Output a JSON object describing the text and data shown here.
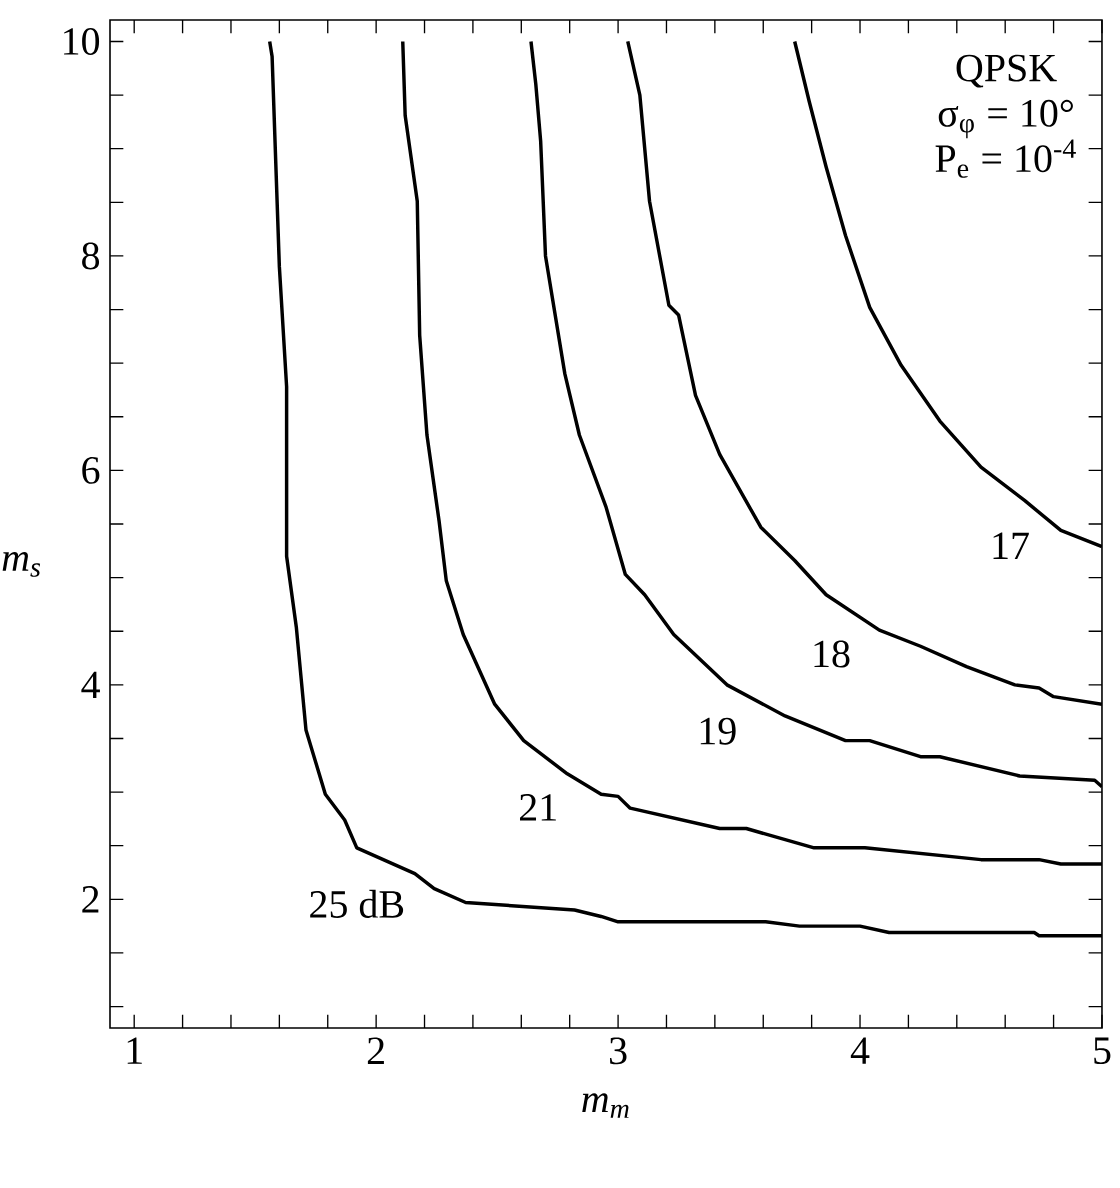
{
  "chart_data": {
    "type": "line",
    "xlabel": "m$_{m}$",
    "ylabel": "m$_{s}$",
    "xlim": [
      0.9,
      5
    ],
    "ylim": [
      0.8,
      10.2
    ],
    "xticks": [
      1,
      {
        "value": 1.2,
        "label": null
      },
      {
        "value": 1.4,
        "label": null
      },
      {
        "value": 1.6,
        "label": null
      },
      {
        "value": 1.8,
        "label": null
      },
      2,
      {
        "value": 2.2,
        "label": null
      },
      {
        "value": 2.4,
        "label": null
      },
      {
        "value": 2.6,
        "label": null
      },
      {
        "value": 2.8,
        "label": null
      },
      3,
      {
        "value": 3.2,
        "label": null
      },
      {
        "value": 3.4,
        "label": null
      },
      {
        "value": 3.6,
        "label": null
      },
      {
        "value": 3.8,
        "label": null
      },
      4,
      {
        "value": 4.2,
        "label": null
      },
      {
        "value": 4.4,
        "label": null
      },
      {
        "value": 4.6,
        "label": null
      },
      {
        "value": 4.8,
        "label": null
      },
      5
    ],
    "yticks": [
      {
        "value": 1,
        "label": null
      },
      {
        "value": 1.5,
        "label": null
      },
      2,
      {
        "value": 2.5,
        "label": null
      },
      {
        "value": 3,
        "label": null
      },
      {
        "value": 3.5,
        "label": null
      },
      4,
      {
        "value": 4.5,
        "label": null
      },
      {
        "value": 5,
        "label": null
      },
      {
        "value": 5.5,
        "label": null
      },
      6,
      {
        "value": 6.5,
        "label": null
      },
      {
        "value": 7,
        "label": null
      },
      {
        "value": 7.5,
        "label": null
      },
      8,
      {
        "value": 8.5,
        "label": null
      },
      {
        "value": 9,
        "label": null
      },
      {
        "value": 9.5,
        "label": null
      },
      10
    ],
    "marker": "none",
    "line_style": "solid",
    "series": [
      {
        "color": "#000000",
        "x": [
          1.56,
          1.57,
          1.6,
          1.63,
          1.63,
          1.67,
          1.71,
          1.79,
          1.87,
          1.92,
          2.16,
          2.24,
          2.37,
          2.82,
          2.93,
          3.0,
          3.61,
          3.75,
          4.0,
          4.12,
          4.72,
          4.74,
          5.0
        ],
        "values": [
          10,
          9.86,
          7.9,
          6.78,
          5.2,
          4.54,
          3.58,
          2.98,
          2.74,
          2.48,
          2.24,
          2.1,
          1.97,
          1.9,
          1.84,
          1.79,
          1.79,
          1.75,
          1.75,
          1.69,
          1.69,
          1.66,
          1.66
        ]
      },
      {
        "color": "#000000",
        "x": [
          2.11,
          2.12,
          2.17,
          2.18,
          2.21,
          2.26,
          2.29,
          2.36,
          2.49,
          2.61,
          2.79,
          2.93,
          3.0,
          3.05,
          3.42,
          3.53,
          3.81,
          4.02,
          4.5,
          4.74,
          4.83,
          5.0
        ],
        "values": [
          10,
          9.31,
          8.51,
          7.26,
          6.33,
          5.53,
          4.97,
          4.47,
          3.82,
          3.48,
          3.17,
          2.98,
          2.96,
          2.85,
          2.66,
          2.66,
          2.48,
          2.48,
          2.37,
          2.37,
          2.33,
          2.33
        ]
      },
      {
        "color": "#000000",
        "x": [
          2.64,
          2.66,
          2.68,
          2.7,
          2.78,
          2.84,
          2.95,
          3.03,
          3.11,
          3.23,
          3.45,
          3.69,
          3.94,
          4.04,
          4.25,
          4.33,
          4.66,
          4.97,
          5.0
        ],
        "values": [
          10,
          9.6,
          9.07,
          8.0,
          6.9,
          6.33,
          5.66,
          5.03,
          4.84,
          4.47,
          4.0,
          3.71,
          3.48,
          3.48,
          3.33,
          3.33,
          3.15,
          3.11,
          3.05
        ]
      },
      {
        "color": "#000000",
        "x": [
          3.04,
          3.09,
          3.13,
          3.21,
          3.25,
          3.32,
          3.42,
          3.59,
          3.73,
          3.86,
          4.08,
          4.25,
          4.44,
          4.64,
          4.74,
          4.8,
          5.0
        ],
        "values": [
          10,
          9.5,
          8.51,
          7.54,
          7.45,
          6.7,
          6.15,
          5.47,
          5.16,
          4.84,
          4.51,
          4.36,
          4.17,
          4.0,
          3.97,
          3.89,
          3.82
        ]
      },
      {
        "color": "#000000",
        "x": [
          3.73,
          3.79,
          3.86,
          3.94,
          4.04,
          4.17,
          4.33,
          4.5,
          4.68,
          4.83,
          5.0
        ],
        "values": [
          10,
          9.44,
          8.83,
          8.19,
          7.52,
          6.98,
          6.46,
          6.03,
          5.72,
          5.44,
          5.29
        ]
      }
    ],
    "annotations": [
      "QPSK",
      "σ$_{φ}$ = 10°",
      "P$_{e}$ = 10$^{-4}$",
      {
        "text": "25 dB",
        "x": 1.92,
        "y": 2.48
      },
      {
        "text": "21",
        "x": 2.67,
        "y": 3.38
      },
      {
        "text": "19",
        "x": 3.41,
        "y": 4.09
      },
      {
        "text": "18",
        "x": 3.88,
        "y": 4.81
      },
      {
        "text": "17",
        "x": 4.62,
        "y": 5.82
      }
    ]
  }
}
